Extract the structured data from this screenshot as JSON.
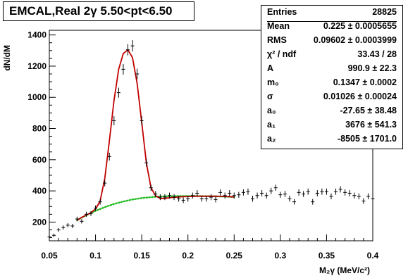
{
  "title": "EMCAL,Real 2γ  5.50<pt<6.50",
  "stats": {
    "header": {
      "label": "Entries",
      "value": "28825"
    },
    "rows": [
      {
        "label": "Mean",
        "value": "0.225 ± 0.0005655"
      },
      {
        "label": "RMS",
        "value": "0.09602 ± 0.0003999"
      },
      {
        "label": "χ² / ndf",
        "value": "33.43 / 28"
      },
      {
        "label": "A",
        "value": "990.9 ± 22.3"
      },
      {
        "label": "m₀",
        "value": "0.1347 ± 0.0002"
      },
      {
        "label": "σ",
        "value": "0.01026 ± 0.00024"
      },
      {
        "label": "a₀",
        "value": "-27.65 ± 38.48"
      },
      {
        "label": "a₁",
        "value": "3676 ± 541.3"
      },
      {
        "label": "a₂",
        "value": "-8505 ± 1701.0"
      }
    ]
  },
  "chart_data": {
    "type": "scatter",
    "xlabel": "M₂γ (MeV/c²)",
    "ylabel": "dN/dM",
    "xlim": [
      0.05,
      0.4
    ],
    "ylim": [
      80,
      1430
    ],
    "x_ticks": [
      "0.05",
      "0.1",
      "0.15",
      "0.2",
      "0.25",
      "0.3",
      "0.35",
      "0.4"
    ],
    "y_ticks": [
      "200",
      "400",
      "600",
      "800",
      "1000",
      "1200",
      "1400"
    ],
    "colors": {
      "points": "#000000",
      "fit": "#c00000",
      "background": "#22bb22"
    },
    "series": [
      {
        "style": "points_with_errors",
        "x": [
          0.05,
          0.055,
          0.06,
          0.065,
          0.07,
          0.075,
          0.08,
          0.085,
          0.09,
          0.095,
          0.1,
          0.105,
          0.11,
          0.115,
          0.12,
          0.125,
          0.13,
          0.135,
          0.14,
          0.145,
          0.15,
          0.155,
          0.16,
          0.165,
          0.17,
          0.175,
          0.18,
          0.185,
          0.19,
          0.195,
          0.2,
          0.205,
          0.21,
          0.215,
          0.22,
          0.225,
          0.23,
          0.235,
          0.24,
          0.245,
          0.25,
          0.255,
          0.26,
          0.265,
          0.27,
          0.275,
          0.28,
          0.285,
          0.29,
          0.295,
          0.3,
          0.305,
          0.31,
          0.315,
          0.32,
          0.325,
          0.33,
          0.335,
          0.34,
          0.345,
          0.35,
          0.355,
          0.36,
          0.365,
          0.37,
          0.375,
          0.38,
          0.385,
          0.39,
          0.395,
          0.4
        ],
        "y": [
          105,
          115,
          150,
          165,
          180,
          175,
          220,
          205,
          250,
          255,
          290,
          330,
          450,
          620,
          850,
          1030,
          1180,
          1305,
          1330,
          1150,
          850,
          580,
          420,
          380,
          360,
          360,
          370,
          360,
          350,
          340,
          350,
          370,
          385,
          350,
          350,
          360,
          345,
          390,
          370,
          385,
          370,
          375,
          390,
          395,
          350,
          370,
          385,
          370,
          400,
          420,
          375,
          380,
          350,
          330,
          390,
          380,
          395,
          330,
          385,
          395,
          395,
          365,
          395,
          410,
          390,
          385,
          370,
          365,
          335,
          365,
          350
        ],
        "yerr": [
          10,
          11,
          12,
          13,
          13,
          13,
          15,
          14,
          16,
          16,
          17,
          18,
          21,
          25,
          29,
          32,
          34,
          36,
          36,
          34,
          29,
          24,
          20,
          19,
          19,
          19,
          19,
          19,
          19,
          18,
          19,
          19,
          20,
          19,
          19,
          19,
          19,
          20,
          19,
          20,
          19,
          19,
          20,
          20,
          19,
          19,
          20,
          19,
          20,
          20,
          19,
          20,
          19,
          18,
          20,
          19,
          20,
          18,
          20,
          20,
          20,
          19,
          20,
          20,
          20,
          20,
          19,
          19,
          18,
          19,
          19
        ]
      },
      {
        "style": "fit_line",
        "x": [
          0.08,
          0.085,
          0.09,
          0.095,
          0.1,
          0.105,
          0.11,
          0.115,
          0.12,
          0.125,
          0.13,
          0.135,
          0.14,
          0.145,
          0.15,
          0.155,
          0.16,
          0.165,
          0.17,
          0.175,
          0.18,
          0.185,
          0.19,
          0.195,
          0.2,
          0.205,
          0.21,
          0.215,
          0.22,
          0.225,
          0.23,
          0.235,
          0.24,
          0.245,
          0.25
        ],
        "y": [
          212,
          230,
          245,
          260,
          283,
          335,
          480,
          720,
          980,
          1180,
          1280,
          1305,
          1255,
          1090,
          840,
          580,
          420,
          368,
          352,
          352,
          356,
          359,
          361,
          363,
          364,
          365,
          366,
          366,
          366,
          366,
          366,
          365,
          364,
          363,
          361
        ]
      },
      {
        "style": "dotted_background",
        "x": [
          0.08,
          0.09,
          0.1,
          0.11,
          0.12,
          0.13,
          0.14,
          0.15,
          0.16,
          0.17,
          0.18,
          0.19,
          0.2,
          0.21,
          0.22,
          0.23,
          0.24,
          0.25
        ],
        "y": [
          212,
          245,
          272,
          296,
          316,
          332,
          345,
          354,
          360,
          364,
          366,
          367,
          367,
          367,
          366,
          365,
          363,
          361
        ]
      }
    ]
  }
}
